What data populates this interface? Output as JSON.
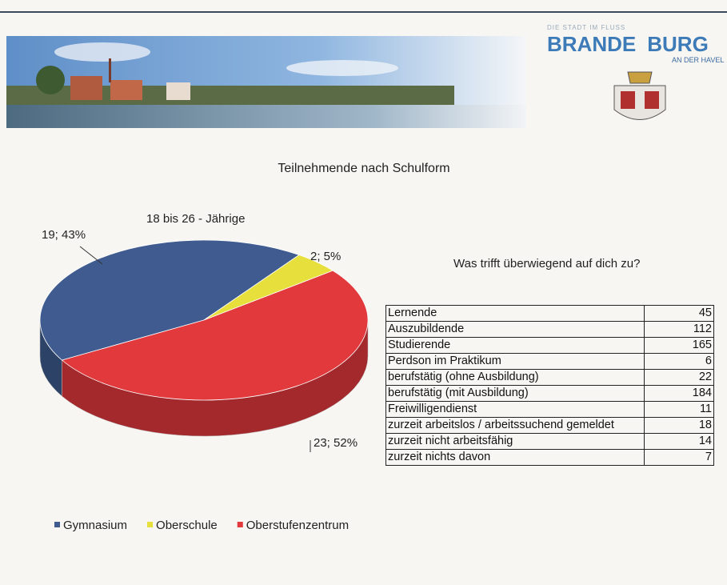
{
  "header": {
    "tagline": "DIE STADT IM FLUSS",
    "brand_left": "BRANDE",
    "brand_right": "BURG",
    "brand_sub": "AN DER HAVEL"
  },
  "chart_data": {
    "type": "pie",
    "title": "Teilnehmende nach Schulform",
    "subtitle": "18 bis 26 - Jährige",
    "categories": [
      "Gymnasium",
      "Oberschule",
      "Oberstufenzentrum"
    ],
    "values": [
      19,
      2,
      23
    ],
    "value_labels": [
      "19; 43%",
      "2; 5%",
      "23; 52%"
    ],
    "colors": [
      "#3f5b8f",
      "#e6df3c",
      "#e2393d"
    ]
  },
  "table": {
    "title": "Was trifft überwiegend auf dich zu?",
    "rows": [
      [
        "Lernende",
        45
      ],
      [
        "Auszubildende",
        112
      ],
      [
        "Studierende",
        165
      ],
      [
        "Perdson im Praktikum",
        6
      ],
      [
        "berufstätig (ohne Ausbildung)",
        22
      ],
      [
        "berufstätig (mit Ausbildung)",
        184
      ],
      [
        "Freiwilligendienst",
        11
      ],
      [
        "zurzeit arbeitslos / arbeitssuchend gemeldet",
        18
      ],
      [
        "zurzeit nicht arbeitsfähig",
        14
      ],
      [
        " zurzeit nichts davon",
        7
      ]
    ]
  }
}
